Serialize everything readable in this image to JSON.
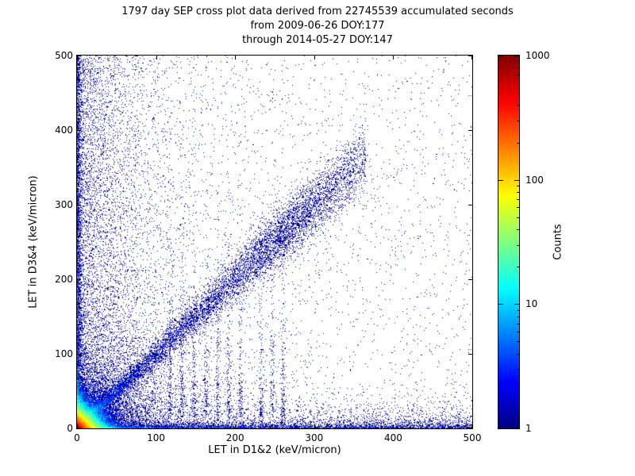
{
  "figure": {
    "title_line1": "1797 day SEP cross plot data derived from 22745539 accumulated seconds",
    "title_line2": "from 2009-06-26 DOY:177",
    "title_line3": "through 2014-05-27 DOY:147"
  },
  "chart_data": {
    "type": "heatmap",
    "title": "1797 day SEP cross plot data derived from 22745539 accumulated seconds",
    "subtitle_lines": [
      "from 2009-06-26 DOY:177",
      "through 2014-05-27 DOY:147"
    ],
    "xlabel": "LET in D1&2 (keV/micron)",
    "ylabel": "LET in D3&4 (keV/micron)",
    "xlim": [
      0,
      500
    ],
    "ylim": [
      0,
      500
    ],
    "x_ticks": [
      0,
      100,
      200,
      300,
      400,
      500
    ],
    "y_ticks": [
      0,
      100,
      200,
      300,
      400,
      500
    ],
    "grid": false,
    "background": "#ffffff",
    "colorbar": {
      "label": "Counts",
      "scale": "log",
      "min": 1,
      "max": 1000,
      "ticks": [
        1,
        10,
        100,
        1000
      ],
      "colormap": "jet",
      "colormap_stops": [
        {
          "pos": 0.0,
          "color": "#000080"
        },
        {
          "pos": 0.125,
          "color": "#0000ff"
        },
        {
          "pos": 0.375,
          "color": "#00ffff"
        },
        {
          "pos": 0.625,
          "color": "#ffff00"
        },
        {
          "pos": 0.875,
          "color": "#ff0000"
        },
        {
          "pos": 1.0,
          "color": "#800000"
        }
      ]
    },
    "description": "Log-scaled 2D histogram of particle LET coincidences. A very hot (red/orange, ~1000 counts) core sits at the origin fading through yellow, green and cyan within ~25 keV/micron; a cyan-to-blue band follows the y=x diagonal out to ~350 with a denser blob near (265,265); dense blue/cyan pileups line the x and y axes; faint vertical streaks appear near x=120-260; sparse single-count dark blue points scatter over the whole plane.",
    "density_model": {
      "seed": 20090626,
      "log_max": 3,
      "components": [
        {
          "name": "origin-core",
          "type": "expxy",
          "n": 56000,
          "sx": 9,
          "sy": 9
        },
        {
          "name": "origin-fan",
          "type": "fan",
          "n": 9000,
          "scale": 55
        },
        {
          "name": "main-diagonal-band",
          "type": "diag",
          "n": 8500,
          "max": 365,
          "pow": 1.5,
          "base_spread": 4,
          "spread_slope": 0.055
        },
        {
          "name": "diagonal-blob",
          "type": "dblob",
          "n": 1700,
          "cx": 268,
          "cy": 268,
          "along": 55,
          "perp": 16
        },
        {
          "name": "left-column-scatter",
          "type": "expx_uni",
          "n": 6000,
          "scale": 48
        },
        {
          "name": "bottom-row-scatter",
          "type": "uni_expy",
          "n": 3000,
          "scale": 13
        },
        {
          "name": "left-edge",
          "type": "edge",
          "axis": "y",
          "n": 3800,
          "scale": 2.2,
          "pow": 1.7
        },
        {
          "name": "bottom-edge",
          "type": "edge",
          "axis": "x",
          "n": 3800,
          "scale": 2.2,
          "pow": 1.9
        },
        {
          "name": "uniform-background",
          "type": "uniform",
          "n": 2600
        },
        {
          "name": "vertical-streaks",
          "type": "streaks",
          "n": 1400,
          "centers": [
            118,
            133,
            148,
            163,
            178,
            192,
            207,
            233,
            247,
            261
          ],
          "sigma": 1.4,
          "ymin": 15,
          "scale": 85
        }
      ]
    }
  }
}
